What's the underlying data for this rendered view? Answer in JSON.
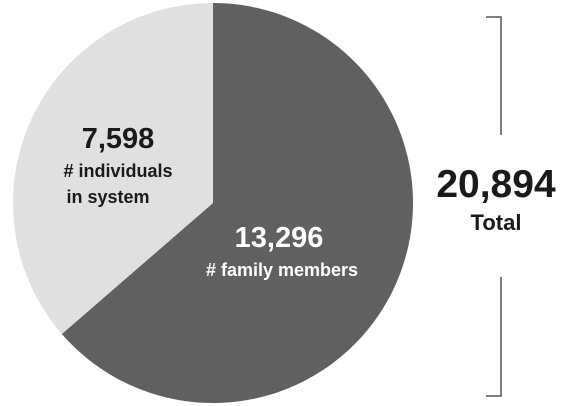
{
  "chart_data": {
    "type": "pie",
    "title": "",
    "slices": [
      {
        "label": "# family members",
        "value": 13296,
        "value_text": "13,296"
      },
      {
        "label": "# individuals in system",
        "value_text": "7,598",
        "value": 7598
      }
    ],
    "total": {
      "value": 20894,
      "value_text": "20,894",
      "label": "Total"
    },
    "colors": {
      "family": "#606060",
      "individuals": "#e0e0e0",
      "family_text": "#ffffff",
      "individuals_text": "#1a1a1a",
      "bracket": "#555555"
    }
  },
  "labels": {
    "family_value": "13,296",
    "family_label": "# family members",
    "individuals_value": "7,598",
    "individuals_line1": "# individuals",
    "individuals_line2": "in system",
    "total_value": "20,894",
    "total_label": "Total"
  }
}
